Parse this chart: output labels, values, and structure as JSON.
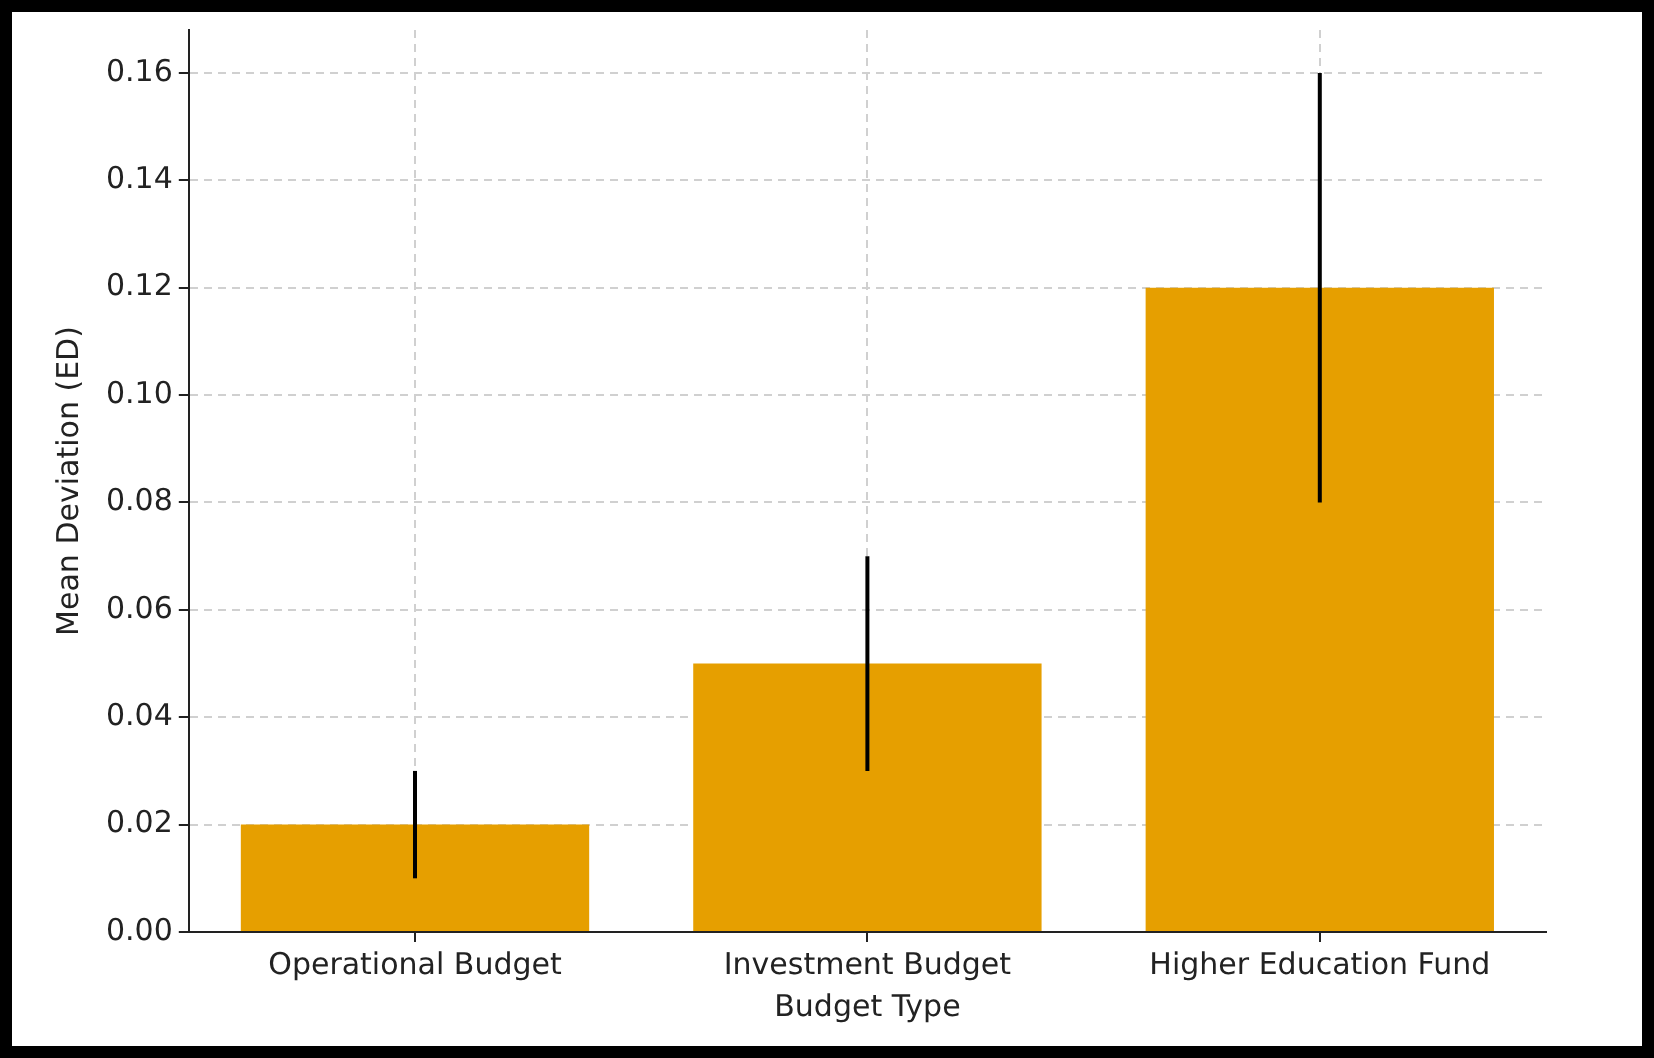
{
  "chart_data": {
    "type": "bar",
    "xlabel": "Budget Type",
    "ylabel": "Mean Deviation (ED)",
    "categories": [
      "Operational Budget",
      "Investment Budget",
      "Higher Education Fund"
    ],
    "values": [
      0.02,
      0.05,
      0.12
    ],
    "errors": [
      0.01,
      0.02,
      0.04
    ],
    "color": "#e69f00",
    "ylim": [
      0,
      0.168
    ],
    "yticks": [
      {
        "value": 0,
        "label": "0.00"
      },
      {
        "value": 0.02,
        "label": "0.02"
      },
      {
        "value": 0.04,
        "label": "0.04"
      },
      {
        "value": 0.06,
        "label": "0.06"
      },
      {
        "value": 0.08,
        "label": "0.08"
      },
      {
        "value": 0.1,
        "label": "0.10"
      },
      {
        "value": 0.12,
        "label": "0.12"
      },
      {
        "value": 0.14,
        "label": "0.14"
      },
      {
        "value": 0.16,
        "label": "0.16"
      }
    ],
    "grid": true,
    "legend": false
  }
}
